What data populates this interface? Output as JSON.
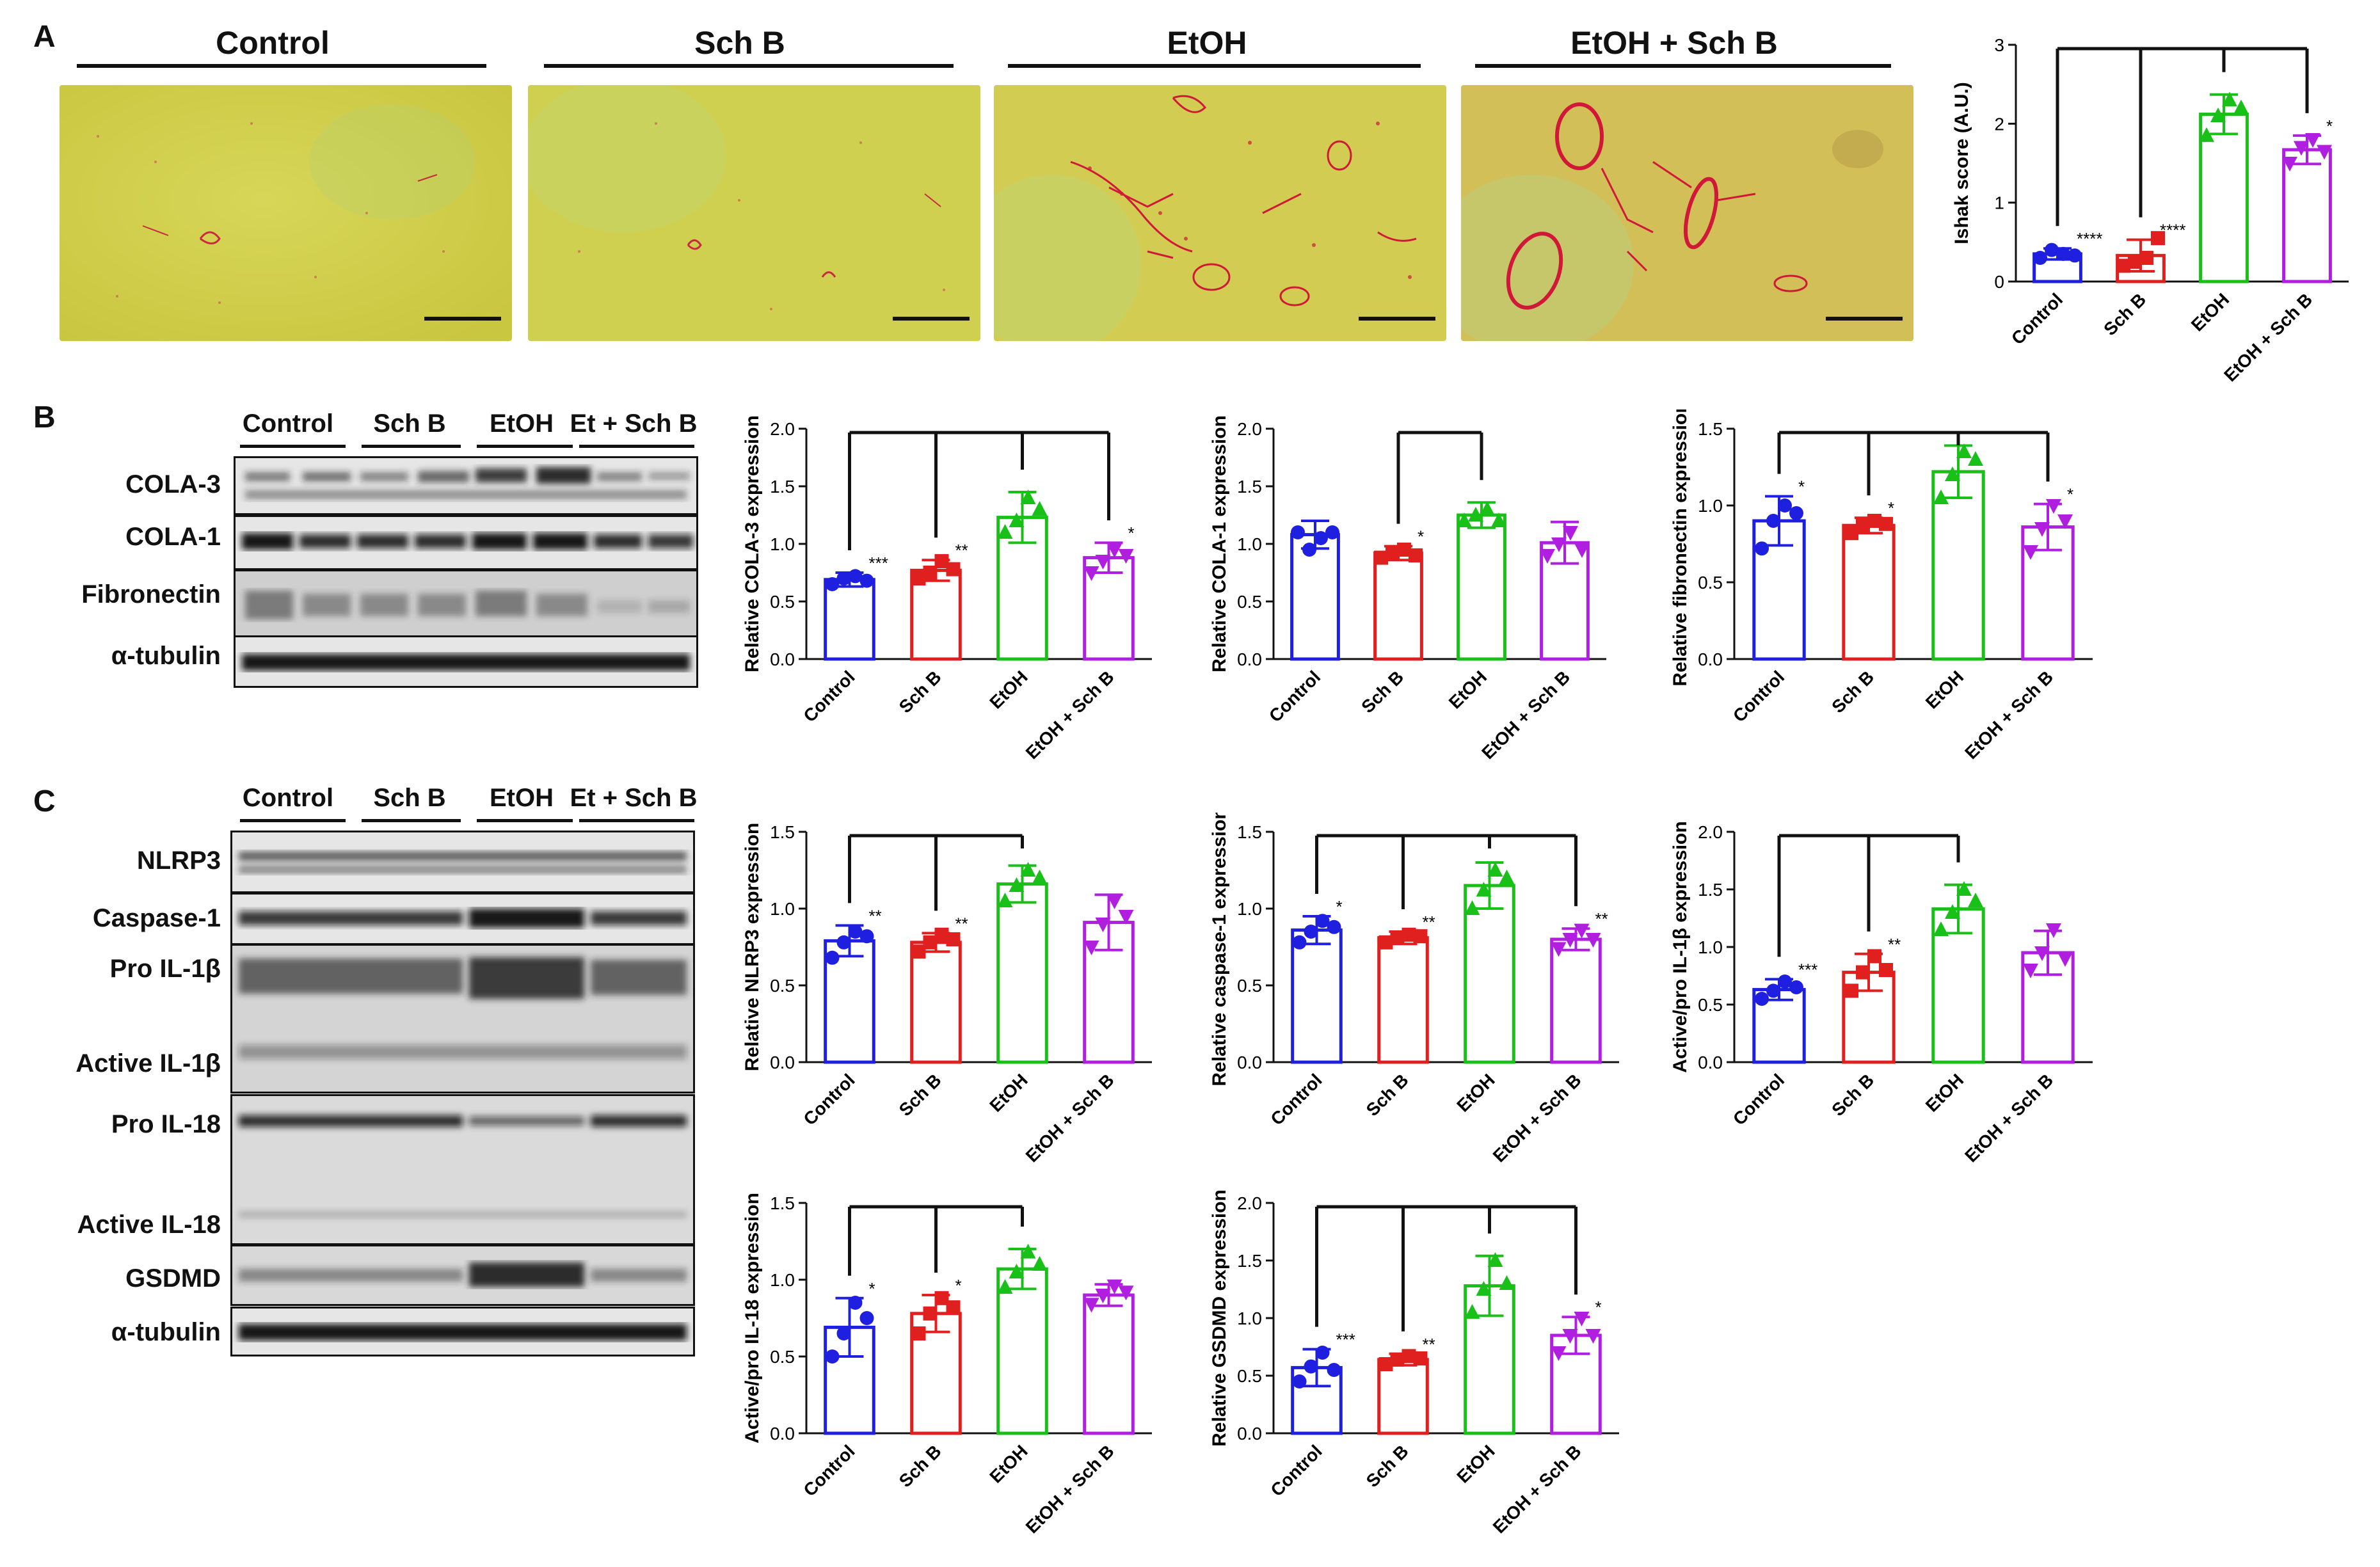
{
  "panels": {
    "A": {
      "letter": "A",
      "images": [
        {
          "label": "Control"
        },
        {
          "label": "Sch B"
        },
        {
          "label": "EtOH"
        },
        {
          "label": "EtOH + Sch B"
        }
      ]
    },
    "B": {
      "letter": "B",
      "blot_groups": [
        "Control",
        "Sch B",
        "EtOH",
        "Et + Sch B"
      ],
      "blot_rows": [
        "COLA-3",
        "COLA-1",
        "Fibronectin",
        "α-tubulin"
      ]
    },
    "C": {
      "letter": "C",
      "blot_groups": [
        "Control",
        "Sch B",
        "EtOH",
        "Et + Sch B"
      ],
      "blot_rows": [
        "NLRP3",
        "Caspase-1",
        "Pro IL-1β",
        "Active IL-1β",
        "Pro IL-18",
        "Active IL-18",
        "GSDMD",
        "α-tubulin"
      ]
    }
  },
  "colors": {
    "Control": "#1f1fe0",
    "Sch B": "#e01f1f",
    "EtOH": "#18c018",
    "EtOH + Sch B": "#b01fe0",
    "histo_bg": "#d6d24a",
    "stain": "#d01838"
  },
  "chart_data": [
    {
      "id": "ishak",
      "type": "bar",
      "ylabel": "Ishak score (A.U.)",
      "categories": [
        "Control",
        "Sch B",
        "EtOH",
        "EtOH + Sch B"
      ],
      "values": [
        0.35,
        0.33,
        2.12,
        1.67
      ],
      "errors": [
        0.07,
        0.2,
        0.25,
        0.18
      ],
      "points": [
        [
          0.3,
          0.4,
          0.35,
          0.33
        ],
        [
          0.2,
          0.25,
          0.3,
          0.55
        ],
        [
          1.85,
          2.1,
          2.3,
          2.2
        ],
        [
          1.5,
          1.7,
          1.8,
          1.65
        ]
      ],
      "markers": [
        "circle",
        "square",
        "triangle",
        "invtriangle"
      ],
      "ylim": [
        0,
        3
      ],
      "yticks": [
        0,
        1,
        2,
        3
      ],
      "significance": [
        "****",
        "****",
        "",
        "*"
      ],
      "brackets": [
        {
          "from": 2,
          "to": [
            0,
            1,
            2
          ]
        },
        {
          "from": 2,
          "to": [
            3
          ]
        }
      ]
    },
    {
      "id": "cola3",
      "type": "bar",
      "ylabel": "Relative COLA-3 expression",
      "categories": [
        "Control",
        "Sch B",
        "EtOH",
        "EtOH + Sch B"
      ],
      "values": [
        0.69,
        0.77,
        1.23,
        0.88
      ],
      "errors": [
        0.06,
        0.09,
        0.22,
        0.13
      ],
      "points": [
        [
          0.65,
          0.7,
          0.72,
          0.68
        ],
        [
          0.7,
          0.75,
          0.85,
          0.78
        ],
        [
          1.1,
          1.2,
          1.4,
          1.3
        ],
        [
          0.75,
          0.85,
          0.95,
          0.9
        ]
      ],
      "markers": [
        "circle",
        "square",
        "triangle",
        "invtriangle"
      ],
      "ylim": [
        0,
        2.0
      ],
      "yticks": [
        0,
        0.5,
        1.0,
        1.5,
        2.0
      ],
      "ytick_labels": [
        "0.0",
        "0.5",
        "1.0",
        "1.5",
        "2.0"
      ],
      "significance": [
        "***",
        "**",
        "",
        "*"
      ],
      "brackets": [
        {
          "from": 2,
          "to": [
            0,
            1,
            2
          ]
        },
        {
          "from": 2,
          "to": [
            3
          ]
        }
      ]
    },
    {
      "id": "cola1",
      "type": "bar",
      "ylabel": "Relative COLA-1 expression",
      "categories": [
        "Control",
        "Sch B",
        "EtOH",
        "EtOH + Sch B"
      ],
      "values": [
        1.08,
        0.92,
        1.25,
        1.01
      ],
      "errors": [
        0.12,
        0.06,
        0.11,
        0.18
      ],
      "points": [
        [
          1.1,
          0.95,
          1.05,
          1.1
        ],
        [
          0.88,
          0.92,
          0.95,
          0.9
        ],
        [
          1.2,
          1.25,
          1.3,
          1.2
        ],
        [
          0.9,
          1.0,
          1.1,
          0.95
        ]
      ],
      "markers": [
        "circle",
        "square",
        "triangle",
        "invtriangle"
      ],
      "ylim": [
        0,
        2.0
      ],
      "yticks": [
        0,
        0.5,
        1.0,
        1.5,
        2.0
      ],
      "ytick_labels": [
        "0.0",
        "0.5",
        "1.0",
        "1.5",
        "2.0"
      ],
      "significance": [
        "",
        "*",
        "",
        ""
      ],
      "brackets": [
        {
          "from": 2,
          "to": [
            1,
            2
          ]
        }
      ]
    },
    {
      "id": "fibronectin",
      "type": "bar",
      "ylabel": "Relative fibronectin expression",
      "categories": [
        "Control",
        "Sch B",
        "EtOH",
        "EtOH + Sch B"
      ],
      "values": [
        0.9,
        0.87,
        1.22,
        0.86
      ],
      "errors": [
        0.16,
        0.05,
        0.17,
        0.15
      ],
      "points": [
        [
          0.72,
          0.9,
          1.0,
          0.95
        ],
        [
          0.82,
          0.87,
          0.9,
          0.88
        ],
        [
          1.05,
          1.2,
          1.35,
          1.3
        ],
        [
          0.7,
          0.85,
          1.0,
          0.9
        ]
      ],
      "markers": [
        "circle",
        "square",
        "triangle",
        "invtriangle"
      ],
      "ylim": [
        0,
        1.5
      ],
      "yticks": [
        0,
        0.5,
        1.0,
        1.5
      ],
      "ytick_labels": [
        "0.0",
        "0.5",
        "1.0",
        "1.5"
      ],
      "significance": [
        "*",
        "*",
        "",
        "*"
      ],
      "brackets": [
        {
          "from": 2,
          "to": [
            0,
            1,
            2
          ]
        },
        {
          "from": 2,
          "to": [
            3
          ]
        }
      ]
    },
    {
      "id": "nlrp3",
      "type": "bar",
      "ylabel": "Relative NLRP3 expression",
      "categories": [
        "Control",
        "Sch B",
        "EtOH",
        "EtOH + Sch B"
      ],
      "values": [
        0.79,
        0.78,
        1.16,
        0.91
      ],
      "errors": [
        0.1,
        0.06,
        0.12,
        0.18
      ],
      "points": [
        [
          0.68,
          0.78,
          0.85,
          0.82
        ],
        [
          0.72,
          0.78,
          0.83,
          0.8
        ],
        [
          1.05,
          1.15,
          1.25,
          1.2
        ],
        [
          0.75,
          0.9,
          1.05,
          0.95
        ]
      ],
      "markers": [
        "circle",
        "square",
        "triangle",
        "invtriangle"
      ],
      "ylim": [
        0,
        1.5
      ],
      "yticks": [
        0,
        0.5,
        1.0,
        1.5
      ],
      "ytick_labels": [
        "0.0",
        "0.5",
        "1.0",
        "1.5"
      ],
      "significance": [
        "**",
        "**",
        "",
        ""
      ],
      "brackets": [
        {
          "from": 2,
          "to": [
            0,
            1,
            2
          ]
        }
      ]
    },
    {
      "id": "caspase1",
      "type": "bar",
      "ylabel": "Relative caspase-1 expression",
      "categories": [
        "Control",
        "Sch B",
        "EtOH",
        "EtOH + Sch B"
      ],
      "values": [
        0.86,
        0.81,
        1.15,
        0.8
      ],
      "errors": [
        0.09,
        0.04,
        0.15,
        0.07
      ],
      "points": [
        [
          0.78,
          0.85,
          0.92,
          0.88
        ],
        [
          0.78,
          0.81,
          0.83,
          0.82
        ],
        [
          1.0,
          1.12,
          1.25,
          1.2
        ],
        [
          0.74,
          0.8,
          0.86,
          0.8
        ]
      ],
      "markers": [
        "circle",
        "square",
        "triangle",
        "invtriangle"
      ],
      "ylim": [
        0,
        1.5
      ],
      "yticks": [
        0,
        0.5,
        1.0,
        1.5
      ],
      "ytick_labels": [
        "0.0",
        "0.5",
        "1.0",
        "1.5"
      ],
      "significance": [
        "*",
        "**",
        "",
        "**"
      ],
      "brackets": [
        {
          "from": 2,
          "to": [
            0,
            1,
            2
          ]
        },
        {
          "from": 2,
          "to": [
            3
          ]
        }
      ]
    },
    {
      "id": "il1b",
      "type": "bar",
      "ylabel": "Active/pro IL-1β expression",
      "categories": [
        "Control",
        "Sch B",
        "EtOH",
        "EtOH + Sch B"
      ],
      "values": [
        0.63,
        0.78,
        1.33,
        0.95
      ],
      "errors": [
        0.09,
        0.16,
        0.21,
        0.19
      ],
      "points": [
        [
          0.55,
          0.62,
          0.7,
          0.65
        ],
        [
          0.62,
          0.78,
          0.92,
          0.8
        ],
        [
          1.15,
          1.3,
          1.5,
          1.4
        ],
        [
          0.8,
          0.95,
          1.15,
          0.9
        ]
      ],
      "markers": [
        "circle",
        "square",
        "triangle",
        "invtriangle"
      ],
      "ylim": [
        0,
        2.0
      ],
      "yticks": [
        0,
        0.5,
        1.0,
        1.5,
        2.0
      ],
      "ytick_labels": [
        "0.0",
        "0.5",
        "1.0",
        "1.5",
        "2.0"
      ],
      "significance": [
        "***",
        "**",
        "",
        ""
      ],
      "brackets": [
        {
          "from": 2,
          "to": [
            0,
            1,
            2
          ]
        }
      ]
    },
    {
      "id": "il18",
      "type": "bar",
      "ylabel": "Active/pro IL-18 expression",
      "categories": [
        "Control",
        "Sch B",
        "EtOH",
        "EtOH + Sch B"
      ],
      "values": [
        0.69,
        0.78,
        1.07,
        0.9
      ],
      "errors": [
        0.19,
        0.12,
        0.13,
        0.07
      ],
      "points": [
        [
          0.5,
          0.65,
          0.85,
          0.75
        ],
        [
          0.65,
          0.78,
          0.88,
          0.82
        ],
        [
          0.95,
          1.05,
          1.18,
          1.1
        ],
        [
          0.84,
          0.9,
          0.96,
          0.92
        ]
      ],
      "markers": [
        "circle",
        "square",
        "triangle",
        "invtriangle"
      ],
      "ylim": [
        0,
        1.5
      ],
      "yticks": [
        0,
        0.5,
        1.0,
        1.5
      ],
      "ytick_labels": [
        "0.0",
        "0.5",
        "1.0",
        "1.5"
      ],
      "significance": [
        "*",
        "*",
        "",
        ""
      ],
      "brackets": [
        {
          "from": 2,
          "to": [
            0,
            1,
            2
          ]
        }
      ]
    },
    {
      "id": "gsdmd",
      "type": "bar",
      "ylabel": "Relative GSDMD expression",
      "categories": [
        "Control",
        "Sch B",
        "EtOH",
        "EtOH + Sch B"
      ],
      "values": [
        0.57,
        0.64,
        1.28,
        0.85
      ],
      "errors": [
        0.16,
        0.05,
        0.26,
        0.16
      ],
      "points": [
        [
          0.45,
          0.58,
          0.7,
          0.55
        ],
        [
          0.6,
          0.64,
          0.67,
          0.65
        ],
        [
          1.05,
          1.25,
          1.5,
          1.3
        ],
        [
          0.7,
          0.85,
          1.0,
          0.85
        ]
      ],
      "markers": [
        "circle",
        "square",
        "triangle",
        "invtriangle"
      ],
      "ylim": [
        0,
        2.0
      ],
      "yticks": [
        0,
        0.5,
        1.0,
        1.5,
        2.0
      ],
      "ytick_labels": [
        "0.0",
        "0.5",
        "1.0",
        "1.5",
        "2.0"
      ],
      "significance": [
        "***",
        "**",
        "",
        "*"
      ],
      "brackets": [
        {
          "from": 2,
          "to": [
            0,
            1,
            2
          ]
        },
        {
          "from": 2,
          "to": [
            3
          ]
        }
      ]
    }
  ]
}
